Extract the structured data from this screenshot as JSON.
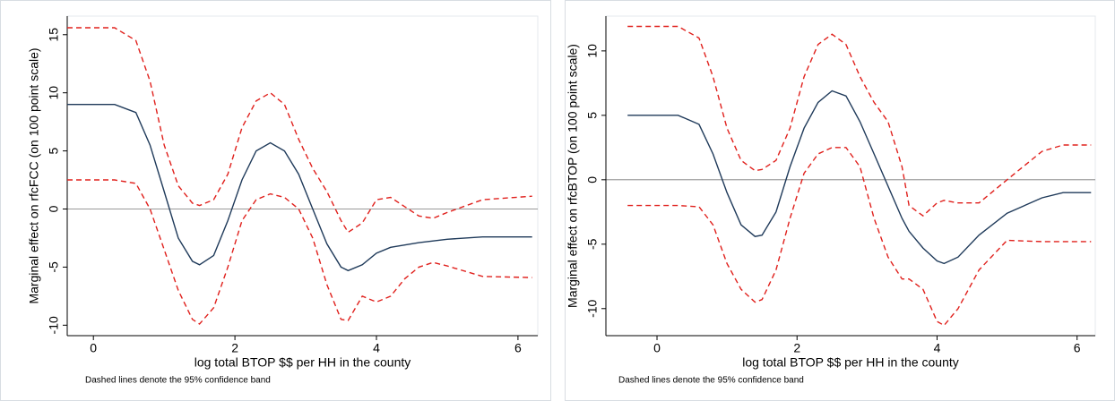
{
  "chart_data": [
    {
      "type": "line",
      "xlabel": "log total BTOP $$ per HH in the county",
      "ylabel": "Marginal effect on rfcFCC (on 100 point scale)",
      "note": "Dashed lines denote the 95% confidence band",
      "x": [
        -0.37,
        0.3,
        0.6,
        0.8,
        1.0,
        1.2,
        1.4,
        1.5,
        1.7,
        1.9,
        2.1,
        2.3,
        2.5,
        2.7,
        2.9,
        3.1,
        3.3,
        3.5,
        3.6,
        3.8,
        4.0,
        4.2,
        4.4,
        4.6,
        4.8,
        5.0,
        5.5,
        6.2
      ],
      "series": [
        {
          "color": "#1f3a5a",
          "dash": false,
          "values": [
            9,
            9,
            8.3,
            5.5,
            1.5,
            -2.5,
            -4.5,
            -4.8,
            -4,
            -1,
            2.5,
            5,
            5.7,
            5,
            3,
            0,
            -3,
            -5,
            -5.3,
            -4.8,
            -3.8,
            -3.3,
            -3.1,
            -2.9,
            -2.75,
            -2.6,
            -2.4,
            -2.4
          ]
        },
        {
          "color": "#e0201c",
          "dash": true,
          "values": [
            15.6,
            15.6,
            14.5,
            11,
            5.5,
            2,
            0.5,
            0.3,
            0.8,
            3,
            7,
            9.3,
            10,
            9,
            6,
            3.5,
            1.5,
            -1,
            -2,
            -1.2,
            0.8,
            1,
            0.2,
            -0.6,
            -0.8,
            -0.3,
            0.8,
            1.1
          ]
        },
        {
          "color": "#e0201c",
          "dash": true,
          "values": [
            2.5,
            2.5,
            2.2,
            0,
            -3.5,
            -7,
            -9.5,
            -9.9,
            -8.5,
            -5,
            -1,
            0.8,
            1.3,
            1,
            0,
            -2.5,
            -6.5,
            -9.5,
            -9.6,
            -7.5,
            -8,
            -7.5,
            -6,
            -5,
            -4.6,
            -4.9,
            -5.8,
            -5.9
          ]
        }
      ],
      "hline": 0,
      "xlim": [
        -0.37,
        6.28
      ],
      "xticks": [
        0,
        2,
        4,
        6
      ],
      "ylim": [
        -10.9,
        16.6
      ],
      "yticks": [
        -10,
        -5,
        0,
        5,
        10,
        15
      ]
    },
    {
      "type": "line",
      "xlabel": "log total BTOP $$ per HH in the county",
      "ylabel": "Marginal effect on rfcBTOP (on 100 point scale)",
      "note": "Dashed lines denote the 95% confidence band",
      "x": [
        -0.42,
        0.3,
        0.6,
        0.8,
        1.0,
        1.2,
        1.4,
        1.5,
        1.7,
        1.9,
        2.1,
        2.3,
        2.5,
        2.7,
        2.9,
        3.1,
        3.3,
        3.5,
        3.6,
        3.8,
        4.0,
        4.1,
        4.3,
        4.6,
        5.0,
        5.5,
        5.8,
        6.2
      ],
      "series": [
        {
          "color": "#1f3a5a",
          "dash": false,
          "values": [
            5,
            5,
            4.3,
            2,
            -1,
            -3.5,
            -4.4,
            -4.3,
            -2.5,
            1,
            4,
            6,
            6.9,
            6.5,
            4.5,
            2,
            -0.5,
            -3,
            -4,
            -5.3,
            -6.3,
            -6.5,
            -6,
            -4.3,
            -2.6,
            -1.4,
            -1,
            -1
          ]
        },
        {
          "color": "#e0201c",
          "dash": true,
          "values": [
            11.9,
            11.9,
            11,
            8,
            4,
            1.5,
            0.7,
            0.8,
            1.5,
            4,
            8,
            10.5,
            11.3,
            10.5,
            8,
            6,
            4.5,
            1,
            -2,
            -2.8,
            -1.8,
            -1.6,
            -1.8,
            -1.8,
            0,
            2.2,
            2.7,
            2.7
          ]
        },
        {
          "color": "#e0201c",
          "dash": true,
          "values": [
            -2,
            -2,
            -2.1,
            -3.5,
            -6.5,
            -8.5,
            -9.5,
            -9.3,
            -7,
            -3,
            0.5,
            2,
            2.5,
            2.5,
            1,
            -3,
            -6,
            -7.7,
            -7.7,
            -8.5,
            -11,
            -11.3,
            -10,
            -7,
            -4.7,
            -4.8,
            -4.8,
            -4.8
          ]
        }
      ],
      "hline": 0,
      "xlim": [
        -0.73,
        6.26
      ],
      "xticks": [
        0,
        2,
        4,
        6
      ],
      "ylim": [
        -12.1,
        12.7
      ],
      "yticks": [
        -10,
        -5,
        0,
        5,
        10
      ]
    }
  ]
}
